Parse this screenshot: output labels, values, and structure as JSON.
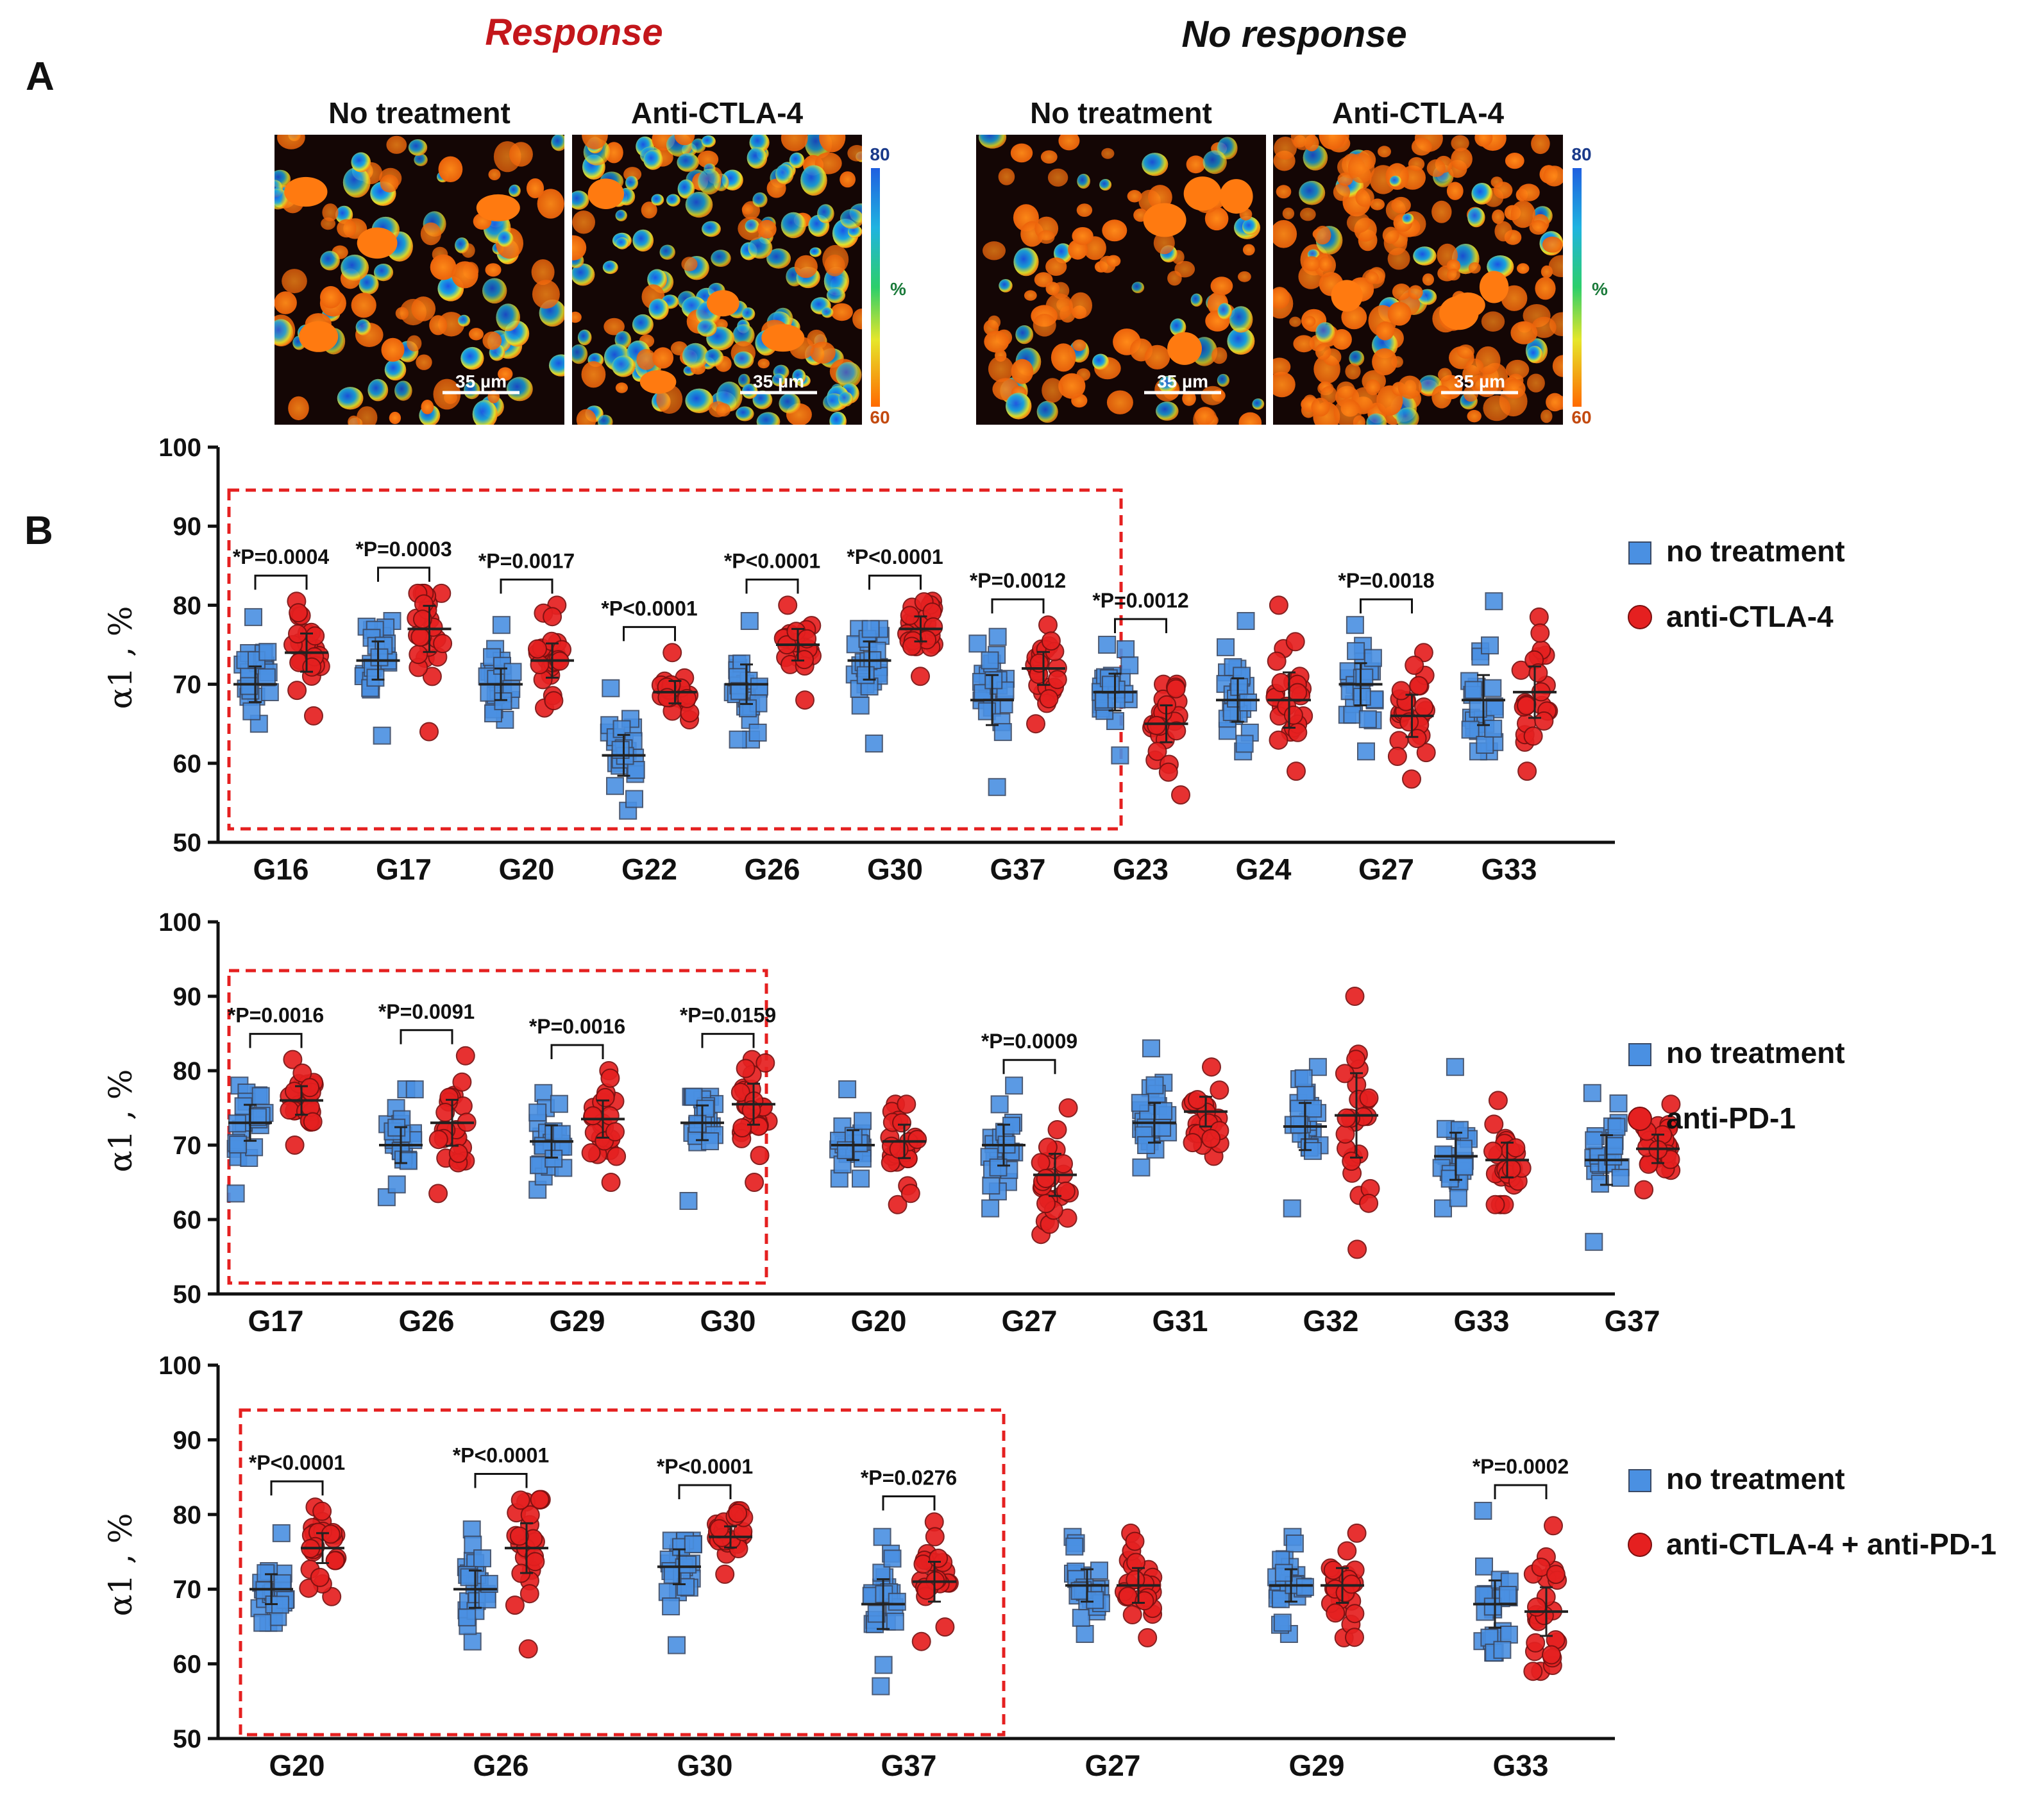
{
  "panel_a": {
    "letter": "A",
    "group_titles": {
      "response": "Response",
      "no_response": "No response"
    },
    "images": [
      {
        "label": "No treatment",
        "scale": "35 µm"
      },
      {
        "label": "Anti-CTLA-4",
        "scale": "35 µm"
      },
      {
        "label": "No treatment",
        "scale": "35 µm"
      },
      {
        "label": "Anti-CTLA-4",
        "scale": "35 µm"
      }
    ],
    "colorbar": {
      "max": "80",
      "min": "60",
      "unit": "%"
    }
  },
  "panel_b": {
    "letter": "B"
  },
  "colors": {
    "no_treatment": "#4a90e2",
    "treatment": "#e52020",
    "response_box": "#e52020",
    "title_response": "#c3161b"
  },
  "chart_data": [
    {
      "type": "scatter",
      "ylabel": "α1 , %",
      "ylim": [
        50,
        100
      ],
      "yticks": [
        50,
        60,
        70,
        80,
        90,
        100
      ],
      "legend": [
        "no treatment",
        "anti-CTLA-4"
      ],
      "responders_boxed": [
        "G16",
        "G17",
        "G20",
        "G22",
        "G26",
        "G30",
        "G37"
      ],
      "groups": [
        {
          "name": "G16",
          "control": {
            "mean": 70,
            "min": 65,
            "max": 78.5
          },
          "treated": {
            "mean": 74,
            "min": 66,
            "max": 80.5
          },
          "p": "*P=0.0004"
        },
        {
          "name": "G17",
          "control": {
            "mean": 73,
            "min": 63.5,
            "max": 78
          },
          "treated": {
            "mean": 77,
            "min": 64,
            "max": 81.5
          },
          "p": "*P=0.0003"
        },
        {
          "name": "G20",
          "control": {
            "mean": 70,
            "min": 65.5,
            "max": 77.5
          },
          "treated": {
            "mean": 73,
            "min": 67,
            "max": 80
          },
          "p": "*P=0.0017"
        },
        {
          "name": "G22",
          "control": {
            "mean": 61,
            "min": 54,
            "max": 69.5
          },
          "treated": {
            "mean": 69,
            "min": 65.5,
            "max": 74
          },
          "p": "*P<0.0001"
        },
        {
          "name": "G26",
          "control": {
            "mean": 70,
            "min": 63,
            "max": 78
          },
          "treated": {
            "mean": 75,
            "min": 68,
            "max": 80
          },
          "p": "*P<0.0001"
        },
        {
          "name": "G30",
          "control": {
            "mean": 73,
            "min": 62.5,
            "max": 77
          },
          "treated": {
            "mean": 77,
            "min": 71,
            "max": 80.5
          },
          "p": "*P<0.0001"
        },
        {
          "name": "G37",
          "control": {
            "mean": 68,
            "min": 57,
            "max": 76
          },
          "treated": {
            "mean": 72,
            "min": 65,
            "max": 77.5
          },
          "p": "*P=0.0012"
        },
        {
          "name": "G23",
          "control": {
            "mean": 69,
            "min": 61,
            "max": 75
          },
          "treated": {
            "mean": 65,
            "min": 56,
            "max": 70
          },
          "p": "*P=0.0012"
        },
        {
          "name": "G24",
          "control": {
            "mean": 68,
            "min": 61.5,
            "max": 78
          },
          "treated": {
            "mean": 68,
            "min": 59,
            "max": 80
          },
          "p": ""
        },
        {
          "name": "G27",
          "control": {
            "mean": 70,
            "min": 61.5,
            "max": 77.5
          },
          "treated": {
            "mean": 66,
            "min": 58,
            "max": 74
          },
          "p": "*P=0.0018"
        },
        {
          "name": "G33",
          "control": {
            "mean": 68,
            "min": 61.5,
            "max": 80.5
          },
          "treated": {
            "mean": 69,
            "min": 59,
            "max": 78.5
          },
          "p": ""
        }
      ]
    },
    {
      "type": "scatter",
      "ylabel": "α1 , %",
      "ylim": [
        50,
        100
      ],
      "yticks": [
        50,
        60,
        70,
        80,
        90,
        100
      ],
      "legend": [
        "no treatment",
        "anti-PD-1"
      ],
      "responders_boxed": [
        "G17",
        "G26",
        "G29",
        "G30"
      ],
      "groups": [
        {
          "name": "G17",
          "control": {
            "mean": 73,
            "min": 63.5,
            "max": 78
          },
          "treated": {
            "mean": 76,
            "min": 70,
            "max": 81.5
          },
          "p": "*P=0.0016"
        },
        {
          "name": "G26",
          "control": {
            "mean": 70,
            "min": 63,
            "max": 77.5
          },
          "treated": {
            "mean": 73,
            "min": 63.5,
            "max": 82
          },
          "p": "*P=0.0091"
        },
        {
          "name": "G29",
          "control": {
            "mean": 70.5,
            "min": 64,
            "max": 77
          },
          "treated": {
            "mean": 73.5,
            "min": 65,
            "max": 80
          },
          "p": "*P=0.0016"
        },
        {
          "name": "G30",
          "control": {
            "mean": 73,
            "min": 62.5,
            "max": 76.5
          },
          "treated": {
            "mean": 75.5,
            "min": 65,
            "max": 81.5
          },
          "p": "*P=0.0159"
        },
        {
          "name": "G20",
          "control": {
            "mean": 70,
            "min": 65.5,
            "max": 77.5
          },
          "treated": {
            "mean": 70.5,
            "min": 62,
            "max": 75.5
          },
          "p": ""
        },
        {
          "name": "G27",
          "control": {
            "mean": 70,
            "min": 61.5,
            "max": 78
          },
          "treated": {
            "mean": 66,
            "min": 58,
            "max": 75
          },
          "p": "*P=0.0009"
        },
        {
          "name": "G31",
          "control": {
            "mean": 73,
            "min": 67,
            "max": 83
          },
          "treated": {
            "mean": 74.5,
            "min": 68.5,
            "max": 80.5
          },
          "p": ""
        },
        {
          "name": "G32",
          "control": {
            "mean": 72.5,
            "min": 61.5,
            "max": 80.5
          },
          "treated": {
            "mean": 74,
            "min": 56,
            "max": 90
          },
          "p": ""
        },
        {
          "name": "G33",
          "control": {
            "mean": 68.5,
            "min": 61.5,
            "max": 80.5
          },
          "treated": {
            "mean": 68,
            "min": 62,
            "max": 76
          },
          "p": ""
        },
        {
          "name": "G37",
          "control": {
            "mean": 68,
            "min": 57,
            "max": 77
          },
          "treated": {
            "mean": 69.5,
            "min": 64,
            "max": 75.5
          },
          "p": ""
        }
      ]
    },
    {
      "type": "scatter",
      "ylabel": "α1 , %",
      "ylim": [
        50,
        100
      ],
      "yticks": [
        50,
        60,
        70,
        80,
        90,
        100
      ],
      "legend": [
        "no treatment",
        "anti-CTLA-4 + anti-PD-1"
      ],
      "responders_boxed": [
        "G20",
        "G26",
        "G30",
        "G37"
      ],
      "groups": [
        {
          "name": "G20",
          "control": {
            "mean": 70,
            "min": 65.5,
            "max": 77.5
          },
          "treated": {
            "mean": 75.5,
            "min": 69,
            "max": 81
          },
          "p": "*P<0.0001"
        },
        {
          "name": "G26",
          "control": {
            "mean": 70,
            "min": 63,
            "max": 78
          },
          "treated": {
            "mean": 75.5,
            "min": 62,
            "max": 82
          },
          "p": "*P<0.0001"
        },
        {
          "name": "G30",
          "control": {
            "mean": 73,
            "min": 62.5,
            "max": 76.5
          },
          "treated": {
            "mean": 77,
            "min": 72,
            "max": 80.5
          },
          "p": "*P<0.0001"
        },
        {
          "name": "G37",
          "control": {
            "mean": 68,
            "min": 57,
            "max": 77
          },
          "treated": {
            "mean": 71,
            "min": 63,
            "max": 79
          },
          "p": "*P=0.0276"
        },
        {
          "name": "G27",
          "control": {
            "mean": 70.5,
            "min": 64,
            "max": 77
          },
          "treated": {
            "mean": 70.5,
            "min": 63.5,
            "max": 77.5
          },
          "p": ""
        },
        {
          "name": "G29",
          "control": {
            "mean": 70.5,
            "min": 64,
            "max": 77
          },
          "treated": {
            "mean": 70.5,
            "min": 63.5,
            "max": 77.5
          },
          "p": ""
        },
        {
          "name": "G33",
          "control": {
            "mean": 68,
            "min": 61.5,
            "max": 80.5
          },
          "treated": {
            "mean": 67,
            "min": 59,
            "max": 78.5
          },
          "p": "*P=0.0002"
        }
      ]
    }
  ]
}
